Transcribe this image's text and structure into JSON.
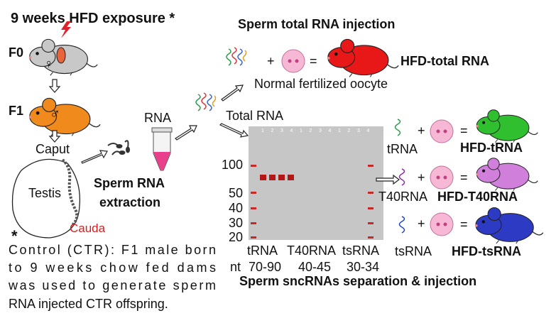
{
  "header": {
    "title": "9 weeks HFD exposure *"
  },
  "generations": [
    "F0",
    "F1"
  ],
  "symbols": {
    "female": "♀",
    "male": "♂"
  },
  "anatomy": {
    "caput": "Caput",
    "testis": "Testis",
    "cauda": "Cauda"
  },
  "extraction": {
    "rna": "RNA",
    "label_lines": [
      "Sperm RNA",
      "extraction"
    ]
  },
  "total_injection": {
    "title": "Sperm total RNA injection",
    "total_rna": "Total RNA",
    "plus": "+",
    "equals": "=",
    "result": "HFD-total RNA",
    "oocyte": "Normal fertilized oocyte"
  },
  "gel": {
    "lane_numbers": [
      "1",
      "2",
      "3",
      "4",
      "1",
      "2",
      "3",
      "4",
      "1",
      "2",
      "3",
      "4"
    ],
    "ladder": [
      "100",
      "50",
      "40",
      "30",
      "20"
    ],
    "lanes": [
      "tRNA",
      "T40RNA",
      "tsRNA"
    ],
    "unit": "nt",
    "sizes": [
      "70-90",
      "40-45",
      "30-34"
    ],
    "caption": "Sperm sncRNAs separation & injection"
  },
  "sncrna": [
    {
      "name": "tRNA",
      "result": "HFD-tRNA"
    },
    {
      "name": "T40RNA",
      "result": "HFD-T40RNA"
    },
    {
      "name": "tsRNA",
      "result": "HFD-tsRNA"
    }
  ],
  "footnote": {
    "mark": "*",
    "lines": [
      "Control (CTR): F1 male born",
      "to 9 weeks chow fed dams",
      "was used to generate sperm",
      "RNA injected CTR offspring."
    ]
  }
}
